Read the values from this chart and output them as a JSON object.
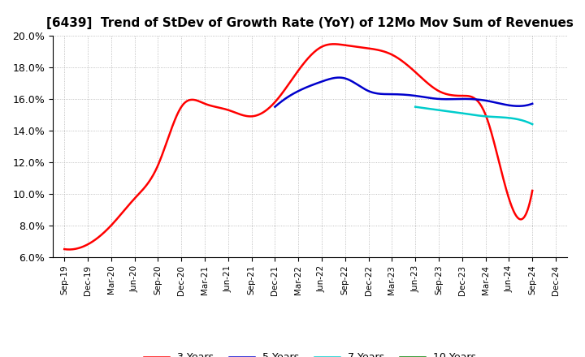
{
  "title": "[6439]  Trend of StDev of Growth Rate (YoY) of 12Mo Mov Sum of Revenues",
  "ylim": [
    0.06,
    0.2
  ],
  "yticks": [
    0.06,
    0.08,
    0.1,
    0.12,
    0.14,
    0.16,
    0.18,
    0.2
  ],
  "ytick_labels": [
    "6.0%",
    "8.0%",
    "10.0%",
    "12.0%",
    "14.0%",
    "16.0%",
    "18.0%",
    "20.0%"
  ],
  "x_labels": [
    "Sep-19",
    "Dec-19",
    "Mar-20",
    "Jun-20",
    "Sep-20",
    "Dec-20",
    "Mar-21",
    "Jun-21",
    "Sep-21",
    "Dec-21",
    "Mar-22",
    "Jun-22",
    "Sep-22",
    "Dec-22",
    "Mar-23",
    "Jun-23",
    "Sep-23",
    "Dec-23",
    "Mar-24",
    "Jun-24",
    "Sep-24",
    "Dec-24"
  ],
  "series": {
    "3 Years": {
      "color": "#FF0000",
      "values": [
        0.065,
        0.068,
        0.08,
        0.097,
        0.118,
        0.155,
        0.157,
        0.153,
        0.149,
        0.158,
        0.178,
        0.193,
        0.194,
        0.192,
        0.188,
        0.177,
        0.165,
        0.162,
        0.15,
        0.097,
        0.102,
        null
      ]
    },
    "5 Years": {
      "color": "#0000CC",
      "values": [
        null,
        null,
        null,
        null,
        null,
        null,
        null,
        null,
        null,
        0.155,
        0.165,
        0.171,
        0.173,
        0.165,
        0.163,
        0.162,
        0.16,
        0.16,
        0.159,
        0.156,
        0.157,
        null
      ]
    },
    "7 Years": {
      "color": "#00CCCC",
      "values": [
        null,
        null,
        null,
        null,
        null,
        null,
        null,
        null,
        null,
        null,
        null,
        null,
        null,
        null,
        null,
        0.155,
        0.153,
        0.151,
        0.149,
        0.148,
        0.144,
        null
      ]
    },
    "10 Years": {
      "color": "#008000",
      "values": [
        null,
        null,
        null,
        null,
        null,
        null,
        null,
        null,
        null,
        null,
        null,
        null,
        null,
        null,
        null,
        null,
        null,
        null,
        null,
        null,
        null,
        null
      ]
    }
  },
  "background_color": "#FFFFFF",
  "plot_background": "#FFFFFF",
  "grid_color": "#999999",
  "title_fontsize": 11,
  "legend_fontsize": 9
}
